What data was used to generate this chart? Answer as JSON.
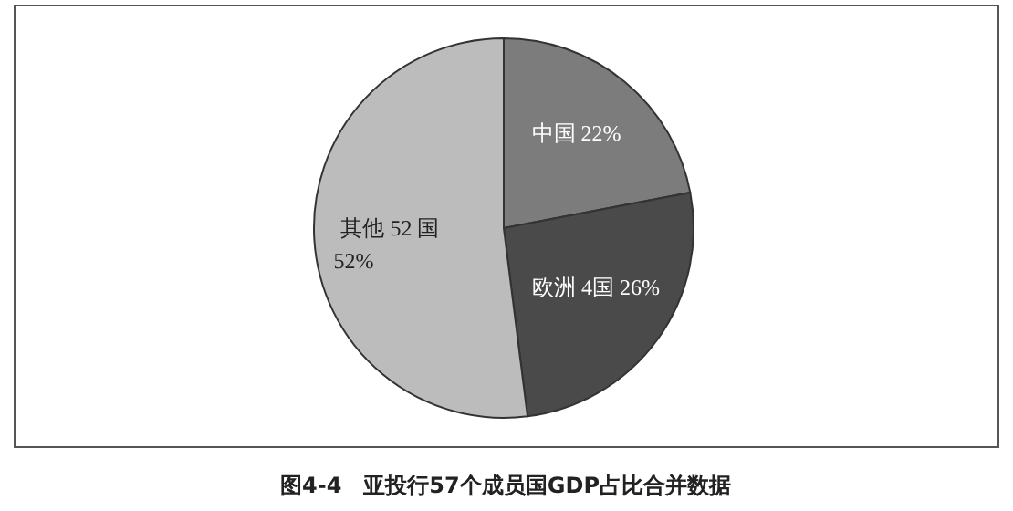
{
  "chart_data": {
    "type": "pie",
    "title": "图4-4　亚投行57个成员国GDP占比合并数据",
    "categories": [
      "中国",
      "欧洲 4国",
      "其他 52 国"
    ],
    "values": [
      22,
      26,
      52
    ],
    "value_labels": [
      "22%",
      "26%",
      "52%"
    ],
    "colors": [
      "#7c7c7c",
      "#4a4a4a",
      "#bcbcbc"
    ]
  }
}
